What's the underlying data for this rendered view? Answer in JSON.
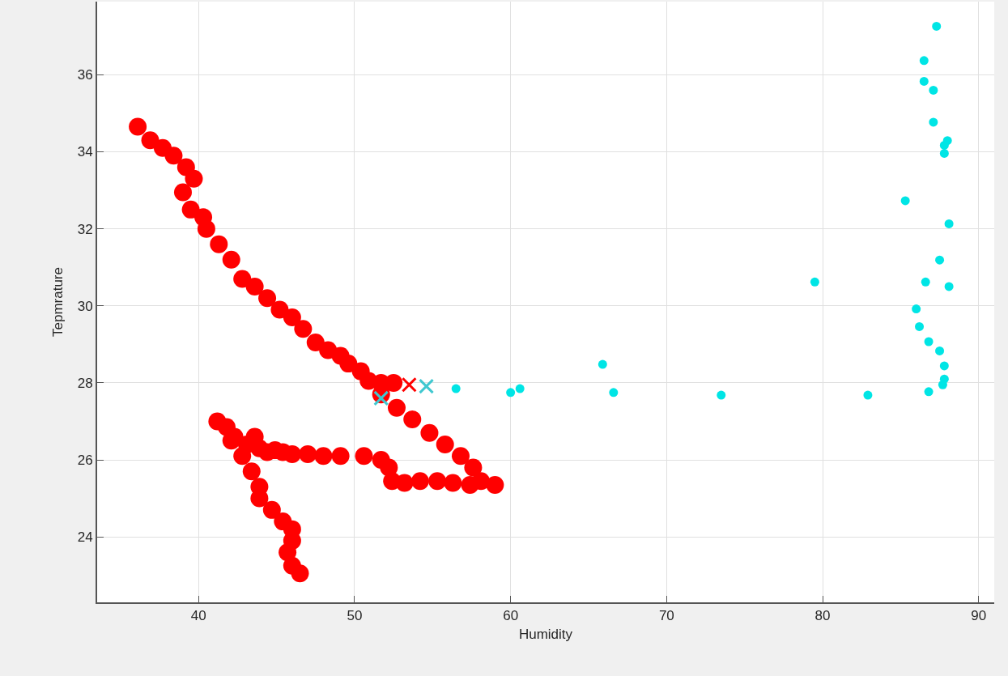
{
  "chart_data": {
    "type": "scatter",
    "xlabel": "Humidity",
    "ylabel": "Tepmrature",
    "xlim": [
      33.5,
      91
    ],
    "xticks": [
      40,
      50,
      60,
      70,
      80,
      90
    ],
    "ylim": [
      22.3,
      37.9
    ],
    "yticks": [
      24,
      26,
      28,
      30,
      32,
      34,
      36
    ],
    "grid": true,
    "marker": "circle",
    "series": [
      {
        "color": "#ff0000",
        "x": [
          36.1,
          36.9,
          37.7,
          38.4,
          39.2,
          39.7,
          39.0,
          39.5,
          40.3,
          40.5,
          41.3,
          42.1,
          42.8,
          43.6,
          44.4,
          45.2,
          46.0,
          46.7,
          47.5,
          48.3,
          49.1,
          49.6,
          50.4,
          50.9,
          51.7,
          52.5,
          51.7,
          52.7,
          53.7,
          54.8,
          55.8,
          56.8,
          57.6,
          58.1,
          59.0,
          57.4,
          56.3,
          55.3,
          54.2,
          53.2,
          52.4,
          52.2,
          51.7,
          50.6,
          49.1,
          48.0,
          47.0,
          46.0,
          45.4,
          44.9,
          44.4,
          43.9,
          43.6,
          43.1,
          42.3,
          41.8,
          41.2,
          42.1,
          42.8,
          43.4,
          43.9,
          43.9,
          44.7,
          45.4,
          46.0,
          46.0,
          45.7,
          46.0,
          46.5
        ],
        "values": [
          34.65,
          34.3,
          34.1,
          33.9,
          33.6,
          33.3,
          32.95,
          32.5,
          32.3,
          32.0,
          31.6,
          31.2,
          30.7,
          30.5,
          30.2,
          29.9,
          29.7,
          29.4,
          29.05,
          28.85,
          28.7,
          28.5,
          28.3,
          28.05,
          28.0,
          28.0,
          27.7,
          27.35,
          27.05,
          26.7,
          26.4,
          26.1,
          25.8,
          25.45,
          25.35,
          25.35,
          25.4,
          25.45,
          25.45,
          25.4,
          25.45,
          25.8,
          26.0,
          26.1,
          26.1,
          26.1,
          26.15,
          26.15,
          26.2,
          26.25,
          26.2,
          26.3,
          26.6,
          26.4,
          26.6,
          26.85,
          27.0,
          26.5,
          26.1,
          25.7,
          25.3,
          25.0,
          24.7,
          24.4,
          24.2,
          23.9,
          23.6,
          23.25,
          23.05
        ]
      },
      {
        "color": "#ff0000",
        "marker": "cross",
        "x": [
          53.5
        ],
        "values": [
          27.95
        ]
      },
      {
        "color": "#00e5e5",
        "x": [
          87.3,
          86.5,
          86.5,
          87.1,
          87.1,
          88.0,
          87.8,
          87.8,
          85.3,
          88.1,
          87.5,
          79.5,
          86.6,
          88.1,
          86.0,
          86.2,
          86.8,
          87.5,
          87.8,
          87.8,
          87.7,
          86.8,
          82.9,
          56.5,
          60.0,
          60.6,
          65.9,
          66.6,
          73.5
        ],
        "values": [
          37.26,
          36.37,
          35.83,
          35.6,
          34.77,
          34.29,
          34.17,
          33.96,
          32.73,
          32.13,
          31.19,
          30.62,
          30.62,
          30.5,
          29.92,
          29.46,
          29.07,
          28.83,
          28.44,
          28.1,
          27.95,
          27.77,
          27.68,
          27.85,
          27.75,
          27.85,
          28.48,
          27.75,
          27.68
        ]
      },
      {
        "color": "#40c8d0",
        "marker": "cross",
        "x": [
          54.6,
          51.7
        ],
        "values": [
          27.91,
          27.6
        ]
      }
    ]
  }
}
